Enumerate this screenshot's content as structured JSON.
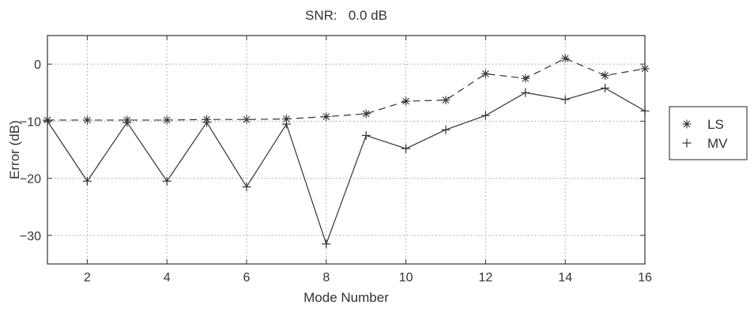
{
  "chart_data": {
    "type": "line",
    "title": "SNR:   0.0 dB",
    "xlabel": "Mode Number",
    "ylabel": "Error (dB)",
    "xlim": [
      1,
      16
    ],
    "ylim": [
      -35,
      5
    ],
    "xticks": [
      2,
      4,
      6,
      8,
      10,
      12,
      14,
      16
    ],
    "yticks": [
      0,
      -10,
      -20,
      -30
    ],
    "grid": true,
    "legend_position": "outside-right",
    "x": [
      1,
      2,
      3,
      4,
      5,
      6,
      7,
      8,
      9,
      10,
      11,
      12,
      13,
      14,
      15,
      16
    ],
    "series": [
      {
        "name": "LS",
        "marker": "asterisk",
        "line_style": "dashed",
        "values": [
          -9.8,
          -9.8,
          -9.8,
          -9.8,
          -9.7,
          -9.7,
          -9.6,
          -9.2,
          -8.7,
          -6.5,
          -6.3,
          -1.7,
          -2.5,
          1.0,
          -2.0,
          -0.8
        ]
      },
      {
        "name": "MV",
        "marker": "plus",
        "line_style": "solid",
        "values": [
          -10.0,
          -20.5,
          -10.2,
          -20.5,
          -10.2,
          -21.5,
          -10.5,
          -31.5,
          -12.5,
          -14.8,
          -11.5,
          -9.0,
          -5.0,
          -6.2,
          -4.2,
          -8.2
        ]
      }
    ]
  }
}
